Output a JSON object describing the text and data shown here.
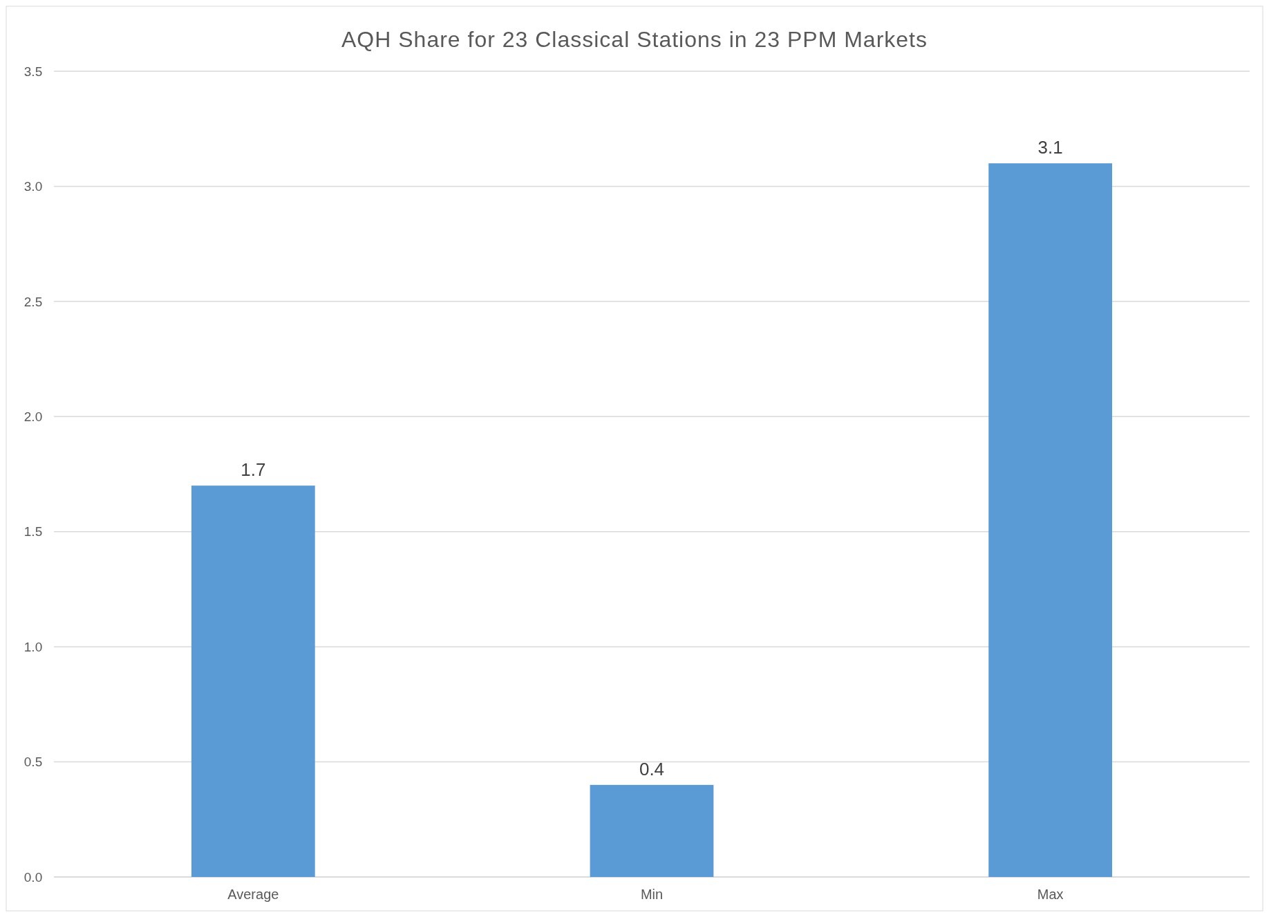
{
  "chart_data": {
    "type": "bar",
    "title": "AQH Share for 23 Classical Stations in 23 PPM Markets",
    "categories": [
      "Average",
      "Min",
      "Max"
    ],
    "values": [
      1.7,
      0.4,
      3.1
    ],
    "color": "#5b9bd5",
    "ylim": [
      0,
      3.5
    ],
    "yticks": [
      {
        "value": 0,
        "label": "0.0"
      },
      {
        "value": 0.5,
        "label": "0.5"
      },
      {
        "value": 1,
        "label": "1.0"
      },
      {
        "value": 1.5,
        "label": "1.5"
      },
      {
        "value": 2,
        "label": "2.0"
      },
      {
        "value": 2.5,
        "label": "2.5"
      },
      {
        "value": 3,
        "label": "3.0"
      },
      {
        "value": 3.5,
        "label": "3.5"
      }
    ],
    "grid": "y",
    "data_labels": true
  }
}
